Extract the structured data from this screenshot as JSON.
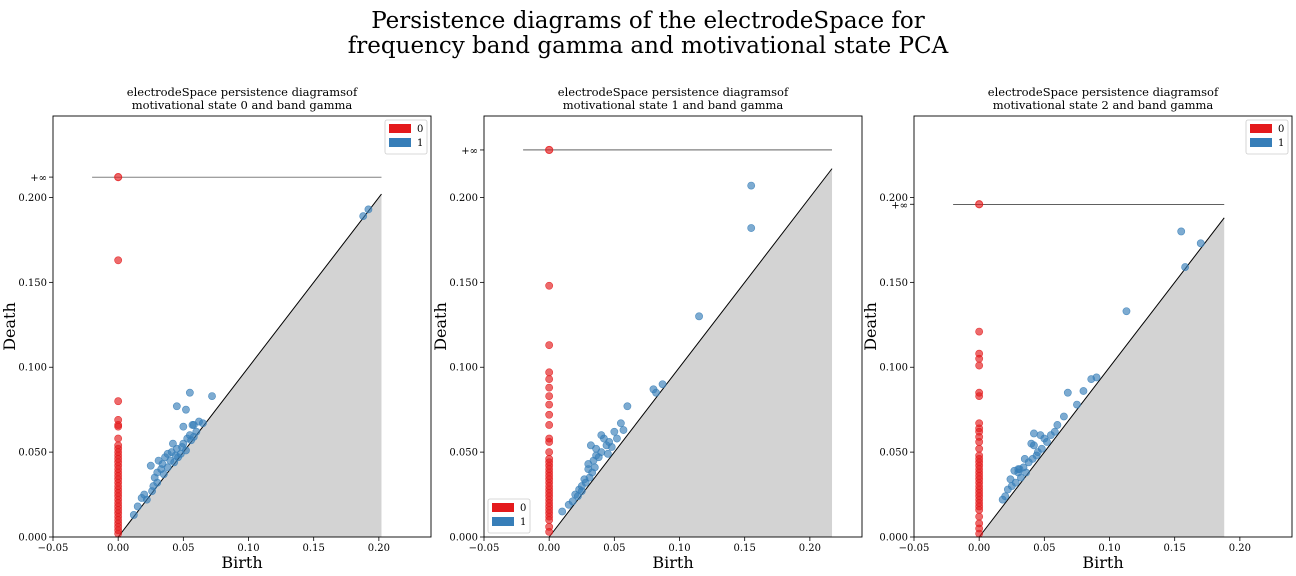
{
  "title_lines": [
    "Persistence diagrams of the electrodeSpace for",
    "frequency band gamma and motivational state PCA"
  ],
  "infinity_label": "+∞",
  "colors": {
    "h0": "#e41a1c",
    "h1": "#377eb8",
    "area": "#d3d3d3"
  },
  "chart_data": [
    {
      "type": "scatter",
      "title": [
        "electrodeSpace persistence diagramsof",
        "motivational state 0 and band gamma"
      ],
      "xlabel": "Birth",
      "ylabel": "Death",
      "xlim": [
        -0.05,
        0.24
      ],
      "ylim": [
        0,
        0.248
      ],
      "xticks": [
        "−0.05",
        "0.00",
        "0.05",
        "0.10",
        "0.15",
        "0.20"
      ],
      "yticks": [
        "0.000",
        "0.050",
        "0.100",
        "0.150",
        "0.200"
      ],
      "diag_max": 0.202,
      "inf_value": 0.212,
      "inf_line_x": [
        -0.02,
        0.202
      ],
      "legend_position": "upper right",
      "series": [
        {
          "name": "0",
          "color": "#e41a1c",
          "x": [
            0,
            0,
            0,
            0,
            0,
            0,
            0,
            0,
            0,
            0,
            0,
            0,
            0,
            0,
            0,
            0,
            0,
            0,
            0,
            0,
            0,
            0,
            0,
            0,
            0,
            0,
            0,
            0,
            0,
            0,
            0,
            0,
            0
          ],
          "y": [
            0.163,
            0.08,
            0.069,
            0.066,
            0.065,
            0.058,
            0.054,
            0.052,
            0.05,
            0.048,
            0.046,
            0.044,
            0.042,
            0.04,
            0.038,
            0.036,
            0.034,
            0.032,
            0.03,
            0.028,
            0.026,
            0.024,
            0.022,
            0.02,
            0.018,
            0.016,
            0.014,
            0.012,
            0.01,
            0.008,
            0.006,
            0.004,
            0.002
          ]
        },
        {
          "name": "1",
          "color": "#377eb8",
          "x": [
            0.012,
            0.015,
            0.018,
            0.02,
            0.022,
            0.025,
            0.027,
            0.028,
            0.03,
            0.031,
            0.033,
            0.034,
            0.035,
            0.036,
            0.038,
            0.04,
            0.041,
            0.043,
            0.044,
            0.045,
            0.046,
            0.048,
            0.049,
            0.05,
            0.052,
            0.053,
            0.055,
            0.056,
            0.057,
            0.058,
            0.06,
            0.062,
            0.065,
            0.072,
            0.045,
            0.05,
            0.052,
            0.055,
            0.058,
            0.038,
            0.042,
            0.03,
            0.026,
            0.188,
            0.192
          ],
          "y": [
            0.013,
            0.018,
            0.023,
            0.025,
            0.022,
            0.042,
            0.03,
            0.035,
            0.038,
            0.045,
            0.04,
            0.043,
            0.037,
            0.047,
            0.041,
            0.045,
            0.05,
            0.044,
            0.048,
            0.052,
            0.047,
            0.049,
            0.053,
            0.055,
            0.051,
            0.058,
            0.06,
            0.057,
            0.066,
            0.059,
            0.062,
            0.068,
            0.067,
            0.083,
            0.077,
            0.065,
            0.075,
            0.085,
            0.066,
            0.049,
            0.055,
            0.032,
            0.027,
            0.189,
            0.193
          ]
        }
      ]
    },
    {
      "type": "scatter",
      "title": [
        "electrodeSpace persistence diagramsof",
        "motivational state 1 and band gamma"
      ],
      "xlabel": "Birth",
      "ylabel": "Death",
      "xlim": [
        -0.05,
        0.24
      ],
      "ylim": [
        0,
        0.248
      ],
      "xticks": [
        "−0.05",
        "0.00",
        "0.05",
        "0.10",
        "0.15",
        "0.20"
      ],
      "yticks": [
        "0.000",
        "0.050",
        "0.100",
        "0.150",
        "0.200"
      ],
      "diag_max": 0.217,
      "inf_value": 0.228,
      "inf_line_x": [
        -0.02,
        0.217
      ],
      "legend_position": "lower left",
      "series": [
        {
          "name": "0",
          "color": "#e41a1c",
          "x": [
            0,
            0,
            0,
            0,
            0,
            0,
            0,
            0,
            0,
            0,
            0,
            0,
            0,
            0,
            0,
            0,
            0,
            0,
            0,
            0,
            0,
            0,
            0,
            0,
            0,
            0,
            0,
            0,
            0,
            0,
            0,
            0,
            0
          ],
          "y": [
            0.148,
            0.113,
            0.097,
            0.093,
            0.088,
            0.083,
            0.078,
            0.072,
            0.066,
            0.058,
            0.056,
            0.05,
            0.046,
            0.044,
            0.042,
            0.04,
            0.038,
            0.036,
            0.034,
            0.032,
            0.03,
            0.028,
            0.026,
            0.024,
            0.022,
            0.02,
            0.018,
            0.016,
            0.014,
            0.012,
            0.01,
            0.006,
            0.003
          ]
        },
        {
          "name": "1",
          "color": "#377eb8",
          "x": [
            0.01,
            0.015,
            0.018,
            0.02,
            0.022,
            0.023,
            0.025,
            0.027,
            0.028,
            0.03,
            0.031,
            0.032,
            0.033,
            0.034,
            0.035,
            0.036,
            0.038,
            0.04,
            0.042,
            0.044,
            0.045,
            0.046,
            0.048,
            0.05,
            0.052,
            0.055,
            0.057,
            0.06,
            0.08,
            0.082,
            0.087,
            0.115,
            0.155,
            0.155,
            0.03,
            0.036,
            0.025,
            0.04
          ],
          "y": [
            0.015,
            0.019,
            0.021,
            0.025,
            0.024,
            0.028,
            0.03,
            0.034,
            0.032,
            0.04,
            0.035,
            0.054,
            0.038,
            0.045,
            0.041,
            0.052,
            0.047,
            0.05,
            0.058,
            0.054,
            0.049,
            0.056,
            0.053,
            0.062,
            0.058,
            0.067,
            0.063,
            0.077,
            0.087,
            0.085,
            0.09,
            0.13,
            0.207,
            0.182,
            0.043,
            0.048,
            0.027,
            0.06
          ]
        }
      ]
    },
    {
      "type": "scatter",
      "title": [
        "electrodeSpace persistence diagramsof",
        "motivational state 2 and band gamma"
      ],
      "xlabel": "Birth",
      "ylabel": "Death",
      "xlim": [
        -0.05,
        0.24
      ],
      "ylim": [
        0,
        0.248
      ],
      "xticks": [
        "−0.05",
        "0.00",
        "0.05",
        "0.10",
        "0.15",
        "0.20"
      ],
      "yticks": [
        "0.000",
        "0.050",
        "0.100",
        "0.150",
        "0.200"
      ],
      "diag_max": 0.188,
      "inf_value": 0.196,
      "inf_line_x": [
        -0.02,
        0.188
      ],
      "legend_position": "upper right",
      "series": [
        {
          "name": "0",
          "color": "#e41a1c",
          "x": [
            0,
            0,
            0,
            0,
            0,
            0,
            0,
            0,
            0,
            0,
            0,
            0,
            0,
            0,
            0,
            0,
            0,
            0,
            0,
            0,
            0,
            0,
            0,
            0,
            0,
            0,
            0,
            0,
            0,
            0,
            0,
            0,
            0
          ],
          "y": [
            0.121,
            0.108,
            0.105,
            0.101,
            0.085,
            0.083,
            0.067,
            0.064,
            0.062,
            0.059,
            0.056,
            0.052,
            0.048,
            0.046,
            0.044,
            0.042,
            0.04,
            0.038,
            0.036,
            0.034,
            0.032,
            0.03,
            0.028,
            0.026,
            0.024,
            0.022,
            0.02,
            0.018,
            0.016,
            0.012,
            0.008,
            0.005,
            0.002
          ]
        },
        {
          "name": "1",
          "color": "#377eb8",
          "x": [
            0.018,
            0.02,
            0.022,
            0.024,
            0.025,
            0.027,
            0.028,
            0.03,
            0.031,
            0.032,
            0.034,
            0.035,
            0.036,
            0.038,
            0.04,
            0.041,
            0.042,
            0.044,
            0.045,
            0.047,
            0.048,
            0.05,
            0.052,
            0.055,
            0.058,
            0.06,
            0.065,
            0.068,
            0.075,
            0.08,
            0.086,
            0.09,
            0.113,
            0.155,
            0.158,
            0.17,
            0.03,
            0.042
          ],
          "y": [
            0.022,
            0.024,
            0.028,
            0.034,
            0.03,
            0.039,
            0.032,
            0.038,
            0.04,
            0.035,
            0.041,
            0.046,
            0.038,
            0.044,
            0.055,
            0.046,
            0.061,
            0.048,
            0.05,
            0.06,
            0.052,
            0.058,
            0.056,
            0.06,
            0.062,
            0.066,
            0.071,
            0.085,
            0.078,
            0.086,
            0.093,
            0.094,
            0.133,
            0.18,
            0.159,
            0.173,
            0.04,
            0.054
          ]
        }
      ]
    }
  ]
}
